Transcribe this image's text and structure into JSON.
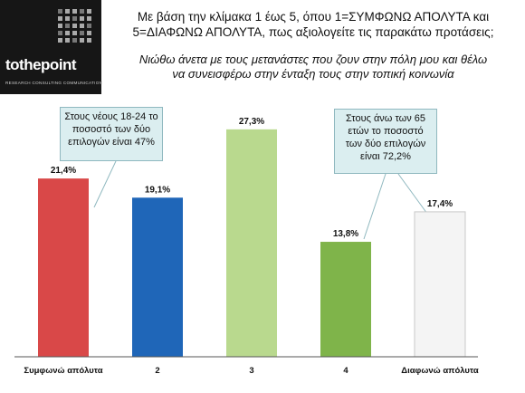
{
  "logo": {
    "name": "tothepoint",
    "tagline": "RESEARCH CONSULTING COMMUNICATION"
  },
  "header": {
    "question_line1": "Με βάση την κλίμακα 1 έως 5, όπου 1=ΣΥΜΦΩΝΩ ΑΠΟΛΥΤΑ και",
    "question_line2": "5=ΔΙΑΦΩΝΩ ΑΠΟΛΥΤΑ, πως αξιολογείτε τις παρακάτω προτάσεις;",
    "statement_line1": "Νιώθω άνετα με τους μετανάστες που ζουν στην πόλη μου και θέλω",
    "statement_line2": "να συνεισφέρω στην ένταξη τους στην τοπική κοινωνία"
  },
  "callouts": {
    "left": "Στους νέους 18-24 το ποσοστό των δύο επιλογών είναι 47%",
    "right": "Στους άνω των 65 ετών το ποσοστό των δύο επιλογών είναι 72,2%"
  },
  "chart_data": {
    "type": "bar",
    "categories": [
      "Συμφωνώ απόλυτα",
      "2",
      "3",
      "4",
      "Διαφωνώ απόλυτα"
    ],
    "values": [
      21.4,
      19.1,
      27.3,
      13.8,
      17.4
    ],
    "value_labels": [
      "21,4%",
      "19,1%",
      "27,3%",
      "13,8%",
      "17,4%"
    ],
    "colors": [
      "#d94848",
      "#1f66b8",
      "#b9d98e",
      "#7fb44a",
      "#f4f4f4"
    ],
    "ylim": [
      0,
      30
    ],
    "grid": false,
    "legend": "none"
  }
}
